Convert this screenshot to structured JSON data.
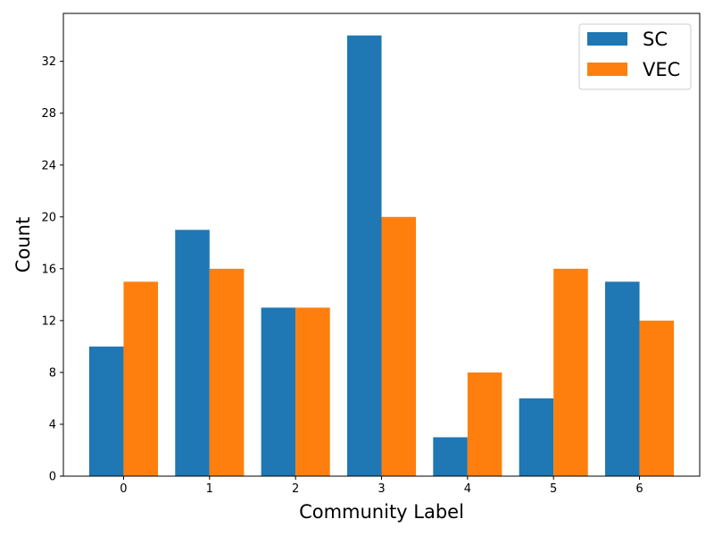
{
  "chart_data": {
    "type": "bar",
    "title": "",
    "xlabel": "Community Label",
    "ylabel": "Count",
    "categories": [
      "0",
      "1",
      "2",
      "3",
      "4",
      "5",
      "6"
    ],
    "series": [
      {
        "name": "SC",
        "color": "#1f77b4",
        "values": [
          10,
          19,
          13,
          34,
          3,
          6,
          15
        ]
      },
      {
        "name": "VEC",
        "color": "#ff7f0e",
        "values": [
          15,
          16,
          13,
          20,
          8,
          16,
          12
        ]
      }
    ],
    "ylim": [
      0,
      35.7
    ],
    "yticks": [
      0,
      4,
      8,
      12,
      16,
      20,
      24,
      28,
      32
    ],
    "grid": false,
    "legend_position": "top-right"
  }
}
